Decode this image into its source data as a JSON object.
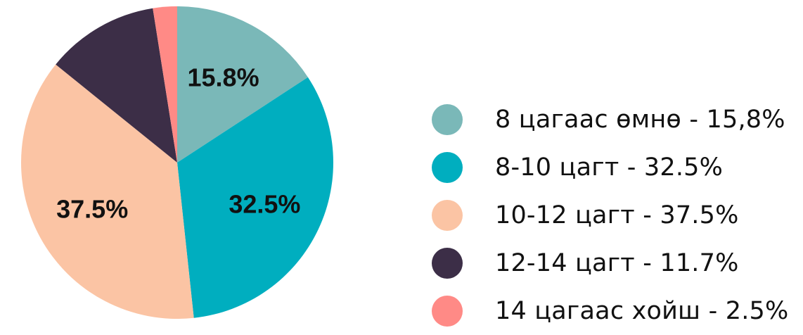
{
  "chart_data": {
    "type": "pie",
    "title": "",
    "slices": [
      {
        "label": "8 цагаас өмнө - 15,8%",
        "value": 15.8,
        "data_label": "15.8%",
        "color": "#7ab8b8",
        "show_label": true
      },
      {
        "label": "8-10 цагт - 32.5%",
        "value": 32.5,
        "data_label": "32.5%",
        "color": "#00aebf",
        "show_label": true
      },
      {
        "label": "10-12 цагт - 37.5%",
        "value": 37.5,
        "data_label": "37.5%",
        "color": "#fbc4a4",
        "show_label": true
      },
      {
        "label": "12-14 цагт - 11.7%",
        "value": 11.7,
        "data_label": "",
        "color": "#3c2e47",
        "show_label": false
      },
      {
        "label": "14 цагаас хойш - 2.5%",
        "value": 2.5,
        "data_label": "",
        "color": "#ff8a86",
        "show_label": false
      }
    ],
    "legend_position": "right"
  }
}
